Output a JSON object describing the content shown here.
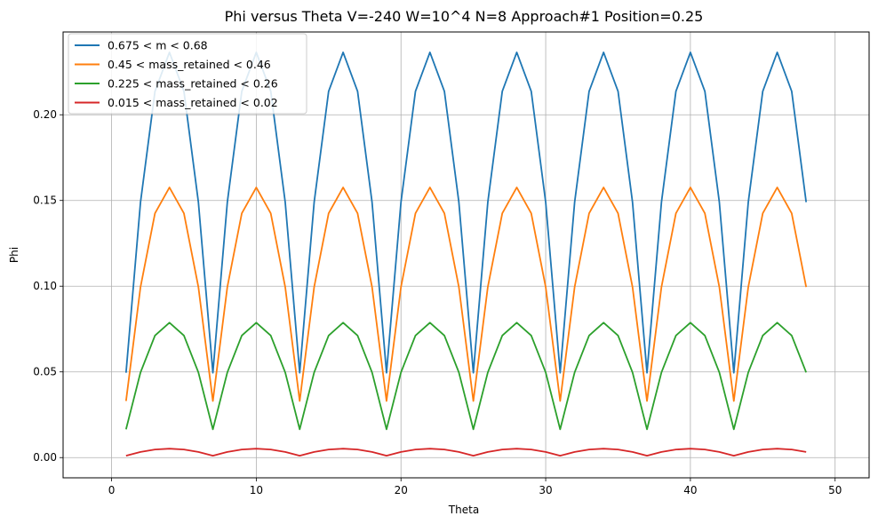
{
  "chart_data": {
    "type": "line",
    "title": "Phi versus Theta    V=-240    W=10^4    N=8    Approach#1  Position=0.25",
    "xlabel": "Theta",
    "ylabel": "Phi",
    "xlim": [
      -3.35,
      52.35
    ],
    "ylim": [
      -0.0118,
      0.2483
    ],
    "xticks": [
      0,
      10,
      20,
      30,
      40,
      50
    ],
    "xtick_labels": [
      "0",
      "10",
      "20",
      "30",
      "40",
      "50"
    ],
    "yticks": [
      0.0,
      0.05,
      0.1,
      0.15,
      0.2
    ],
    "ytick_labels": [
      "0.00",
      "0.05",
      "0.10",
      "0.15",
      "0.20"
    ],
    "grid": true,
    "legend_position": "top-left",
    "x": [
      1,
      2,
      3,
      4,
      5,
      6,
      7,
      8,
      9,
      10,
      11,
      12,
      13,
      14,
      15,
      16,
      17,
      18,
      19,
      20,
      21,
      22,
      23,
      24,
      25,
      26,
      27,
      28,
      29,
      30,
      31,
      32,
      33,
      34,
      35,
      36,
      37,
      38,
      39,
      40,
      41,
      42,
      43,
      44,
      45,
      46,
      47,
      48
    ],
    "series": [
      {
        "name": "0.675 < m < 0.68",
        "color": "#1f77b4",
        "pattern": [
          0.0495,
          0.149,
          0.2137,
          0.2364,
          0.2137,
          0.149
        ]
      },
      {
        "name": "0.45 < mass_retained < 0.46",
        "color": "#ff7f0e",
        "pattern": [
          0.033,
          0.0995,
          0.1425,
          0.1576,
          0.1425,
          0.0995
        ]
      },
      {
        "name": " 0.225 < mass_retained < 0.26",
        "color": "#2ca02c",
        "pattern": [
          0.0165,
          0.0497,
          0.0712,
          0.0787,
          0.0712,
          0.0497
        ]
      },
      {
        "name": "0.015 < mass_retained < 0.02",
        "color": "#d62728",
        "pattern": [
          0.0011,
          0.0033,
          0.0047,
          0.0052,
          0.0047,
          0.0033
        ]
      }
    ]
  }
}
